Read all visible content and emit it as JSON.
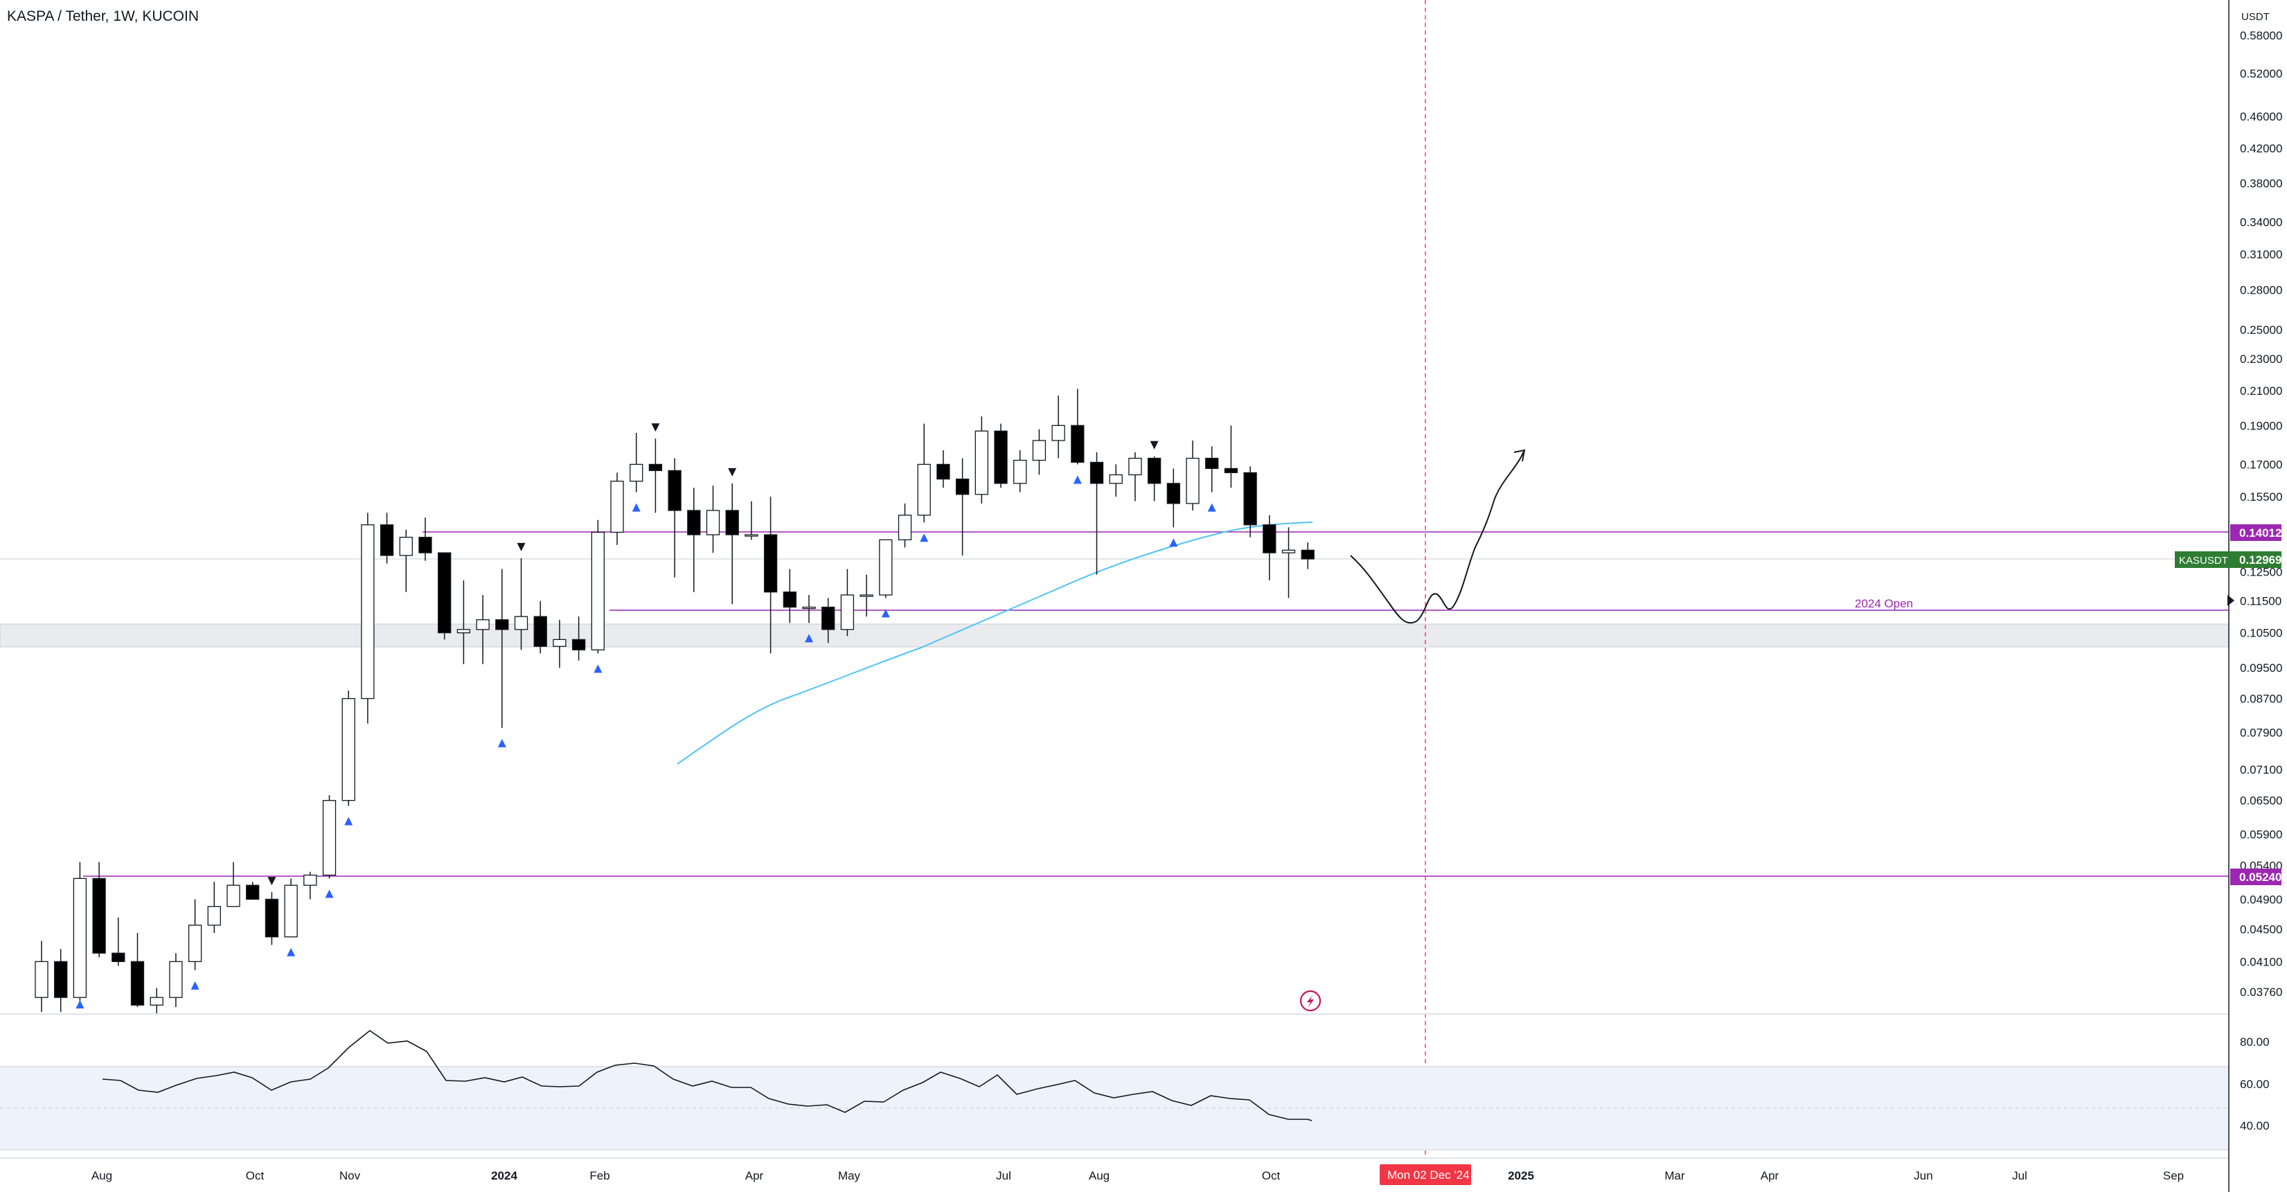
{
  "header": {
    "title": "KASPA / Tether, 1W, KUCOIN"
  },
  "price_axis": {
    "currency": "USDT",
    "ticks": [
      "0.58000",
      "0.52000",
      "0.46000",
      "0.42000",
      "0.38000",
      "0.34000",
      "0.31000",
      "0.28000",
      "0.25000",
      "0.23000",
      "0.21000",
      "0.19000",
      "0.17000",
      "0.15500",
      "0.12500",
      "0.11500",
      "0.10500",
      "0.09500",
      "0.08700",
      "0.07900",
      "0.07100",
      "0.06500",
      "0.05900",
      "0.05400",
      "0.04900",
      "0.04500",
      "0.04100",
      "0.03760"
    ]
  },
  "labels": {
    "level_high": "0.14012",
    "level_low": "0.05240",
    "symbol": "KASUSDT",
    "last_price": "0.12969",
    "year_open": "2024 Open"
  },
  "rsi_axis": {
    "ticks": [
      "80.00",
      "60.00",
      "40.00"
    ]
  },
  "time_axis": {
    "labels": [
      "Aug",
      "Oct",
      "Nov",
      "2024",
      "Feb",
      "Apr",
      "May",
      "Jul",
      "Aug",
      "Oct",
      "2025",
      "Mar",
      "Apr",
      "Jun",
      "Jul",
      "Sep"
    ],
    "cursor_label": "Mon 02 Dec '24"
  },
  "colors": {
    "level_line": "#9c27b0",
    "ma_line": "#4fc3f7",
    "last_price_bg": "#2e7d32",
    "cursor": "#f23645",
    "arrow_up": "#2962ff",
    "arrow_down": "#131722",
    "zone_fill": "#e9ebee"
  },
  "icons": [
    "lightning-icon",
    "cursor-marker-icon"
  ],
  "chart_data": {
    "type": "candlestick",
    "title": "KASPA / Tether, 1W, KUCOIN",
    "scale": "log",
    "ylim": [
      0.0376,
      0.58
    ],
    "timeframe": "1W",
    "series_note": "weekly OHLC, Jul 2023 - Oct 2024",
    "candles": [
      {
        "o": 0.037,
        "h": 0.0435,
        "l": 0.0355,
        "c": 0.041
      },
      {
        "o": 0.041,
        "h": 0.0425,
        "l": 0.0355,
        "c": 0.037
      },
      {
        "o": 0.037,
        "h": 0.0545,
        "l": 0.0365,
        "c": 0.052
      },
      {
        "o": 0.052,
        "h": 0.0545,
        "l": 0.0415,
        "c": 0.042
      },
      {
        "o": 0.042,
        "h": 0.0465,
        "l": 0.0405,
        "c": 0.041
      },
      {
        "o": 0.041,
        "h": 0.0445,
        "l": 0.036,
        "c": 0.0362
      },
      {
        "o": 0.0362,
        "h": 0.038,
        "l": 0.0352,
        "c": 0.037
      },
      {
        "o": 0.037,
        "h": 0.042,
        "l": 0.036,
        "c": 0.041
      },
      {
        "o": 0.041,
        "h": 0.049,
        "l": 0.04,
        "c": 0.0455
      },
      {
        "o": 0.0455,
        "h": 0.0515,
        "l": 0.0445,
        "c": 0.048
      },
      {
        "o": 0.048,
        "h": 0.0545,
        "l": 0.048,
        "c": 0.051
      },
      {
        "o": 0.051,
        "h": 0.0515,
        "l": 0.049,
        "c": 0.049
      },
      {
        "o": 0.049,
        "h": 0.05,
        "l": 0.043,
        "c": 0.044
      },
      {
        "o": 0.044,
        "h": 0.052,
        "l": 0.044,
        "c": 0.051
      },
      {
        "o": 0.051,
        "h": 0.053,
        "l": 0.049,
        "c": 0.0525
      },
      {
        "o": 0.0525,
        "h": 0.066,
        "l": 0.052,
        "c": 0.065
      },
      {
        "o": 0.065,
        "h": 0.089,
        "l": 0.064,
        "c": 0.087
      },
      {
        "o": 0.087,
        "h": 0.148,
        "l": 0.081,
        "c": 0.143
      },
      {
        "o": 0.143,
        "h": 0.148,
        "l": 0.128,
        "c": 0.131
      },
      {
        "o": 0.131,
        "h": 0.141,
        "l": 0.118,
        "c": 0.138
      },
      {
        "o": 0.138,
        "h": 0.146,
        "l": 0.129,
        "c": 0.132
      },
      {
        "o": 0.132,
        "h": 0.132,
        "l": 0.103,
        "c": 0.105
      },
      {
        "o": 0.105,
        "h": 0.122,
        "l": 0.096,
        "c": 0.106
      },
      {
        "o": 0.106,
        "h": 0.117,
        "l": 0.096,
        "c": 0.109
      },
      {
        "o": 0.109,
        "h": 0.126,
        "l": 0.08,
        "c": 0.106
      },
      {
        "o": 0.106,
        "h": 0.13,
        "l": 0.1,
        "c": 0.11
      },
      {
        "o": 0.11,
        "h": 0.115,
        "l": 0.099,
        "c": 0.101
      },
      {
        "o": 0.101,
        "h": 0.109,
        "l": 0.095,
        "c": 0.103
      },
      {
        "o": 0.103,
        "h": 0.11,
        "l": 0.097,
        "c": 0.1
      },
      {
        "o": 0.1,
        "h": 0.145,
        "l": 0.099,
        "c": 0.14
      },
      {
        "o": 0.14,
        "h": 0.166,
        "l": 0.135,
        "c": 0.162
      },
      {
        "o": 0.162,
        "h": 0.186,
        "l": 0.157,
        "c": 0.17
      },
      {
        "o": 0.17,
        "h": 0.183,
        "l": 0.148,
        "c": 0.167
      },
      {
        "o": 0.167,
        "h": 0.173,
        "l": 0.123,
        "c": 0.149
      },
      {
        "o": 0.149,
        "h": 0.159,
        "l": 0.118,
        "c": 0.139
      },
      {
        "o": 0.139,
        "h": 0.16,
        "l": 0.132,
        "c": 0.149
      },
      {
        "o": 0.149,
        "h": 0.161,
        "l": 0.114,
        "c": 0.139
      },
      {
        "o": 0.139,
        "h": 0.153,
        "l": 0.137,
        "c": 0.139
      },
      {
        "o": 0.139,
        "h": 0.155,
        "l": 0.099,
        "c": 0.118
      },
      {
        "o": 0.118,
        "h": 0.126,
        "l": 0.108,
        "c": 0.113
      },
      {
        "o": 0.113,
        "h": 0.117,
        "l": 0.108,
        "c": 0.113
      },
      {
        "o": 0.113,
        "h": 0.116,
        "l": 0.102,
        "c": 0.106
      },
      {
        "o": 0.106,
        "h": 0.126,
        "l": 0.104,
        "c": 0.117
      },
      {
        "o": 0.117,
        "h": 0.124,
        "l": 0.11,
        "c": 0.117
      },
      {
        "o": 0.117,
        "h": 0.136,
        "l": 0.116,
        "c": 0.137
      },
      {
        "o": 0.137,
        "h": 0.152,
        "l": 0.134,
        "c": 0.147
      },
      {
        "o": 0.147,
        "h": 0.191,
        "l": 0.144,
        "c": 0.17
      },
      {
        "o": 0.17,
        "h": 0.177,
        "l": 0.159,
        "c": 0.163
      },
      {
        "o": 0.163,
        "h": 0.173,
        "l": 0.131,
        "c": 0.156
      },
      {
        "o": 0.156,
        "h": 0.195,
        "l": 0.152,
        "c": 0.187
      },
      {
        "o": 0.187,
        "h": 0.191,
        "l": 0.159,
        "c": 0.161
      },
      {
        "o": 0.161,
        "h": 0.177,
        "l": 0.157,
        "c": 0.172
      },
      {
        "o": 0.172,
        "h": 0.188,
        "l": 0.165,
        "c": 0.182
      },
      {
        "o": 0.182,
        "h": 0.207,
        "l": 0.173,
        "c": 0.19
      },
      {
        "o": 0.19,
        "h": 0.211,
        "l": 0.17,
        "c": 0.171
      },
      {
        "o": 0.171,
        "h": 0.176,
        "l": 0.124,
        "c": 0.161
      },
      {
        "o": 0.161,
        "h": 0.17,
        "l": 0.155,
        "c": 0.165
      },
      {
        "o": 0.165,
        "h": 0.176,
        "l": 0.153,
        "c": 0.173
      },
      {
        "o": 0.173,
        "h": 0.174,
        "l": 0.153,
        "c": 0.161
      },
      {
        "o": 0.161,
        "h": 0.168,
        "l": 0.142,
        "c": 0.152
      },
      {
        "o": 0.152,
        "h": 0.182,
        "l": 0.149,
        "c": 0.173
      },
      {
        "o": 0.173,
        "h": 0.179,
        "l": 0.157,
        "c": 0.168
      },
      {
        "o": 0.168,
        "h": 0.19,
        "l": 0.159,
        "c": 0.166
      },
      {
        "o": 0.166,
        "h": 0.169,
        "l": 0.138,
        "c": 0.143
      },
      {
        "o": 0.143,
        "h": 0.147,
        "l": 0.122,
        "c": 0.132
      },
      {
        "o": 0.132,
        "h": 0.142,
        "l": 0.116,
        "c": 0.133
      },
      {
        "o": 0.133,
        "h": 0.136,
        "l": 0.126,
        "c": 0.1297
      }
    ]
  }
}
